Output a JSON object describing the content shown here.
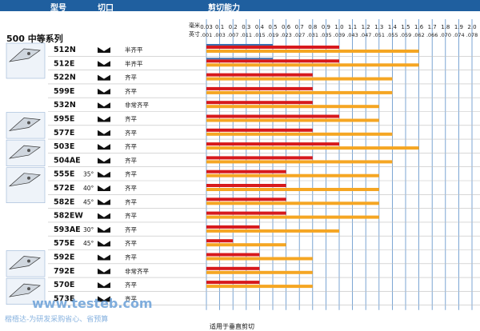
{
  "header": {
    "model_label": "型号",
    "cut_label": "切口",
    "capacity_label": "剪切能力"
  },
  "series_title": "500 中等系列",
  "units": {
    "mm": "毫米",
    "inch": "英寸"
  },
  "footnote": "适用于垂直剪切",
  "watermark": {
    "site": "www.testeb.com",
    "tagline": "楷梧达-为研发采购省心、省预算"
  },
  "colors": {
    "header": "#1f5f9f",
    "red": "#d7191c",
    "orange": "#f5a623",
    "blue": "#3b6fb0",
    "grid": "#5b8fc9",
    "row": "#bfbfbf"
  },
  "icons": [
    "wide-nose-cutter-icon",
    "narrow-nose-cutter-icon",
    "bent-nose-cutter-icon",
    "angled-head-cutter-icon",
    "flat-head-cutter-icon",
    "small-tip-cutter-icon"
  ],
  "chart_data": {
    "type": "bar",
    "x_ticks_mm": [
      "0.03",
      "0.1",
      "0.2",
      "0.3",
      "0.4",
      "0.5",
      "0.6",
      "0.7",
      "0.8",
      "0.9",
      "1.0",
      "1.1",
      "1.2",
      "1.3",
      "1.4",
      "1.5",
      "1.6",
      "1.7",
      "1.8",
      "1.9",
      "2.0"
    ],
    "x_ticks_inch": [
      ".001",
      ".003",
      ".007",
      ".011",
      ".015",
      ".019",
      ".023",
      ".027",
      ".031",
      ".035",
      ".039",
      ".043",
      ".047",
      ".051",
      ".055",
      ".059",
      ".062",
      ".066",
      ".070",
      ".074",
      ".078"
    ],
    "rows": [
      {
        "model": "512N",
        "angle": "",
        "cut": "半齐平",
        "blue": 0.5,
        "red": 1.0,
        "orange": 1.6
      },
      {
        "model": "512E",
        "angle": "",
        "cut": "半齐平",
        "blue": 0.5,
        "red": 1.0,
        "orange": 1.6
      },
      {
        "model": "522N",
        "angle": "",
        "cut": "齐平",
        "blue": null,
        "red": 0.8,
        "orange": 1.4
      },
      {
        "model": "599E",
        "angle": "",
        "cut": "齐平",
        "blue": null,
        "red": 0.8,
        "orange": 1.4
      },
      {
        "model": "532N",
        "angle": "",
        "cut": "非常齐平",
        "blue": null,
        "red": 0.8,
        "orange": 1.3
      },
      {
        "model": "595E",
        "angle": "",
        "cut": "齐平",
        "blue": null,
        "red": 1.0,
        "orange": 1.3
      },
      {
        "model": "577E",
        "angle": "",
        "cut": "齐平",
        "blue": null,
        "red": 0.8,
        "orange": 1.4
      },
      {
        "model": "503E",
        "angle": "",
        "cut": "齐平",
        "blue": null,
        "red": 1.0,
        "orange": 1.6
      },
      {
        "model": "504AE",
        "angle": "",
        "cut": "齐平",
        "blue": null,
        "red": 0.8,
        "orange": 1.4
      },
      {
        "model": "555E",
        "angle": "35°",
        "cut": "齐平",
        "blue": null,
        "red": 0.6,
        "orange": 1.3
      },
      {
        "model": "572E",
        "angle": "40°",
        "cut": "齐平",
        "blue": null,
        "red": 0.6,
        "orange": 1.3
      },
      {
        "model": "582E",
        "angle": "45°",
        "cut": "齐平",
        "blue": null,
        "red": 0.6,
        "orange": 1.3
      },
      {
        "model": "582EW",
        "angle": "",
        "cut": "齐平",
        "blue": null,
        "red": 0.6,
        "orange": 1.3
      },
      {
        "model": "593AE",
        "angle": "30°",
        "cut": "齐平",
        "blue": null,
        "red": 0.4,
        "orange": 1.0
      },
      {
        "model": "575E",
        "angle": "45°",
        "cut": "齐平",
        "blue": null,
        "red": 0.2,
        "orange": 0.6
      },
      {
        "model": "592E",
        "angle": "",
        "cut": "齐平",
        "blue": null,
        "red": 0.4,
        "orange": 0.8
      },
      {
        "model": "792E",
        "angle": "",
        "cut": "非常齐平",
        "blue": null,
        "red": 0.4,
        "orange": 0.8
      },
      {
        "model": "570E",
        "angle": "",
        "cut": "齐平",
        "blue": null,
        "red": 0.4,
        "orange": 0.8
      },
      {
        "model": "573E",
        "angle": "",
        "cut": "齐平",
        "blue": null,
        "red": null,
        "orange": null
      }
    ]
  }
}
